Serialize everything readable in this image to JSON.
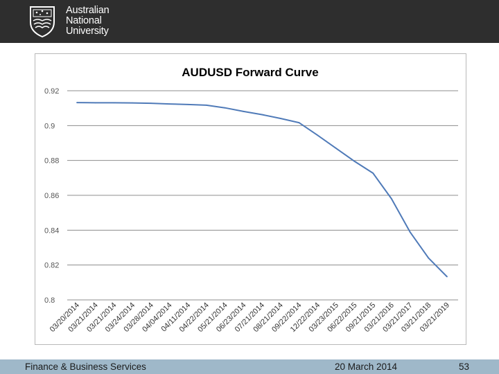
{
  "header": {
    "logo_lines": [
      "Australian",
      "National",
      "University"
    ],
    "background": "#2e2e2e"
  },
  "chart_data": {
    "type": "line",
    "title": "AUDUSD Forward Curve",
    "xlabel": "",
    "ylabel": "",
    "x": [
      "03/20/2014",
      "03/21/2014",
      "03/21/2014",
      "03/24/2014",
      "03/28/2014",
      "04/04/2014",
      "04/11/2014",
      "04/22/2014",
      "05/21/2014",
      "06/23/2014",
      "07/21/2014",
      "08/21/2014",
      "09/22/2014",
      "12/22/2014",
      "03/23/2015",
      "06/22/2015",
      "09/21/2015",
      "03/21/2016",
      "03/21/2017",
      "03/21/2018",
      "03/21/2019"
    ],
    "series": [
      {
        "values": [
          0.9132,
          0.9131,
          0.9131,
          0.913,
          0.9128,
          0.9124,
          0.9121,
          0.9117,
          0.9102,
          0.9081,
          0.9063,
          0.9041,
          0.9017,
          0.8945,
          0.887,
          0.8795,
          0.8727,
          0.858,
          0.839,
          0.824,
          0.8133
        ],
        "color": "#4f7ab8"
      }
    ],
    "ylim": [
      0.8,
      0.92
    ],
    "yticks": [
      "0.92",
      "0.9",
      "0.88",
      "0.86",
      "0.84",
      "0.82",
      "0.8"
    ],
    "grid": true,
    "legend": "none"
  },
  "footer": {
    "left": "Finance & Business Services",
    "date": "20 March 2014",
    "page": "53"
  }
}
